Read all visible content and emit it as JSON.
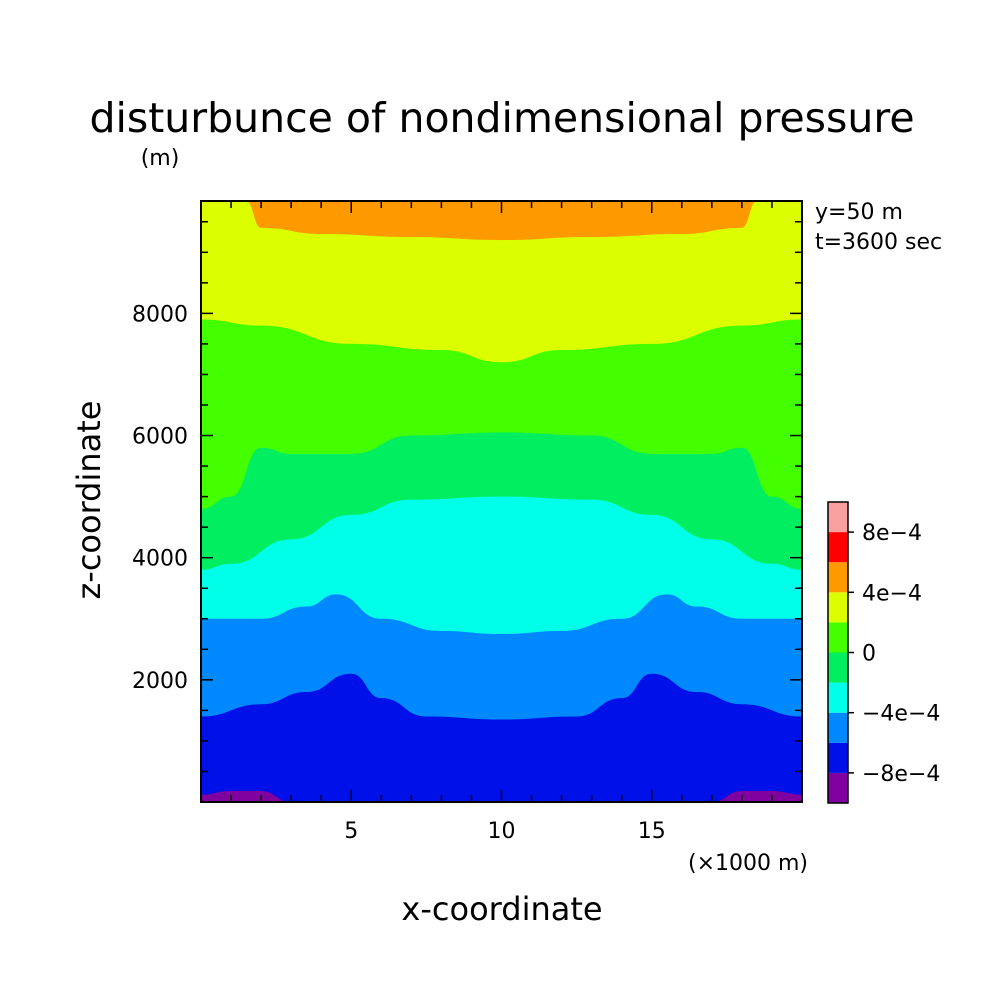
{
  "chart_data": {
    "type": "heatmap",
    "title": "disturbunce of nondimensional pressure",
    "yunit": "(m)",
    "xlabel": "x-coordinate",
    "ylabel": "z-coordinate",
    "xunit": "(×1000 m)",
    "annotations": [
      "y=50 m",
      "t=3600 sec"
    ],
    "xlim": [
      0,
      20
    ],
    "ylim": [
      0,
      9840
    ],
    "xticks": [
      5,
      10,
      15
    ],
    "xtick_labels": [
      "5",
      "10",
      "15"
    ],
    "yticks": [
      2000,
      4000,
      6000,
      8000
    ],
    "ytick_labels": [
      "2000",
      "4000",
      "6000",
      "8000"
    ],
    "grid": false,
    "colorbar": {
      "levels": [
        -0.001,
        -0.0008,
        -0.0006,
        -0.0004,
        -0.0002,
        0,
        0.0002,
        0.0004,
        0.0006,
        0.0008,
        0.001
      ],
      "colors": [
        "#8000a0",
        "#0010e8",
        "#0088ff",
        "#00ffe8",
        "#00ee60",
        "#44ff00",
        "#dcff00",
        "#ff9900",
        "#ff0000",
        "#f8a0a0"
      ],
      "tick_labels": [
        "8e−4",
        "4e−4",
        "0",
        "−4e−4",
        "−8e−4"
      ],
      "tick_values": [
        0.0008,
        0.0004,
        0,
        -0.0004,
        -0.0008
      ]
    },
    "contours": [
      {
        "level": -0.0008,
        "z": [
          [
            0,
            120
          ],
          [
            1,
            180
          ],
          [
            2,
            180
          ],
          [
            3,
            0
          ],
          [
            17,
            0
          ],
          [
            18,
            180
          ],
          [
            19,
            180
          ],
          [
            20,
            120
          ]
        ]
      },
      {
        "level": -0.0006,
        "z": [
          [
            0,
            1400
          ],
          [
            2,
            1600
          ],
          [
            3.5,
            1800
          ],
          [
            5,
            2100
          ],
          [
            6,
            1700
          ],
          [
            7.5,
            1400
          ],
          [
            10,
            1350
          ],
          [
            12.5,
            1400
          ],
          [
            14,
            1700
          ],
          [
            15,
            2100
          ],
          [
            16.5,
            1800
          ],
          [
            18,
            1600
          ],
          [
            20,
            1400
          ]
        ]
      },
      {
        "level": -0.0004,
        "z": [
          [
            0,
            3000
          ],
          [
            2,
            3000
          ],
          [
            3.5,
            3200
          ],
          [
            4.5,
            3400
          ],
          [
            6,
            3000
          ],
          [
            8,
            2800
          ],
          [
            10,
            2750
          ],
          [
            12,
            2800
          ],
          [
            14,
            3000
          ],
          [
            15.5,
            3400
          ],
          [
            16.5,
            3200
          ],
          [
            18,
            3000
          ],
          [
            20,
            3000
          ]
        ]
      },
      {
        "level": -0.0002,
        "z": [
          [
            0,
            3800
          ],
          [
            1,
            3900
          ],
          [
            3,
            4300
          ],
          [
            5,
            4700
          ],
          [
            7,
            4950
          ],
          [
            10,
            5000
          ],
          [
            13,
            4950
          ],
          [
            15,
            4700
          ],
          [
            17,
            4300
          ],
          [
            19,
            3900
          ],
          [
            20,
            3800
          ]
        ]
      },
      {
        "level": 0,
        "z": [
          [
            0,
            4800
          ],
          [
            1,
            5000
          ],
          [
            2,
            5800
          ],
          [
            3,
            5700
          ],
          [
            5,
            5700
          ],
          [
            7,
            6000
          ],
          [
            10,
            6050
          ],
          [
            13,
            6000
          ],
          [
            15,
            5700
          ],
          [
            17,
            5700
          ],
          [
            18,
            5800
          ],
          [
            19,
            5000
          ],
          [
            20,
            4800
          ]
        ]
      },
      {
        "level": 0.0002,
        "z": [
          [
            0,
            7900
          ],
          [
            2,
            7800
          ],
          [
            5,
            7500
          ],
          [
            8,
            7400
          ],
          [
            10,
            7200
          ],
          [
            12,
            7400
          ],
          [
            15,
            7500
          ],
          [
            18,
            7800
          ],
          [
            20,
            7900
          ]
        ]
      },
      {
        "level": 0.0004,
        "z": [
          [
            1.5,
            9840
          ],
          [
            2,
            9400
          ],
          [
            4,
            9300
          ],
          [
            7,
            9250
          ],
          [
            10,
            9200
          ],
          [
            13,
            9250
          ],
          [
            16,
            9300
          ],
          [
            18,
            9400
          ],
          [
            18.5,
            9840
          ]
        ]
      }
    ],
    "cells": [
      {
        "z_range": [
          8000,
          9840
        ],
        "value_range": [
          0.0004,
          0.0006
        ]
      },
      {
        "z_range": [
          6000,
          8000
        ],
        "value_range": [
          0.0002,
          0.0004
        ]
      }
    ]
  }
}
